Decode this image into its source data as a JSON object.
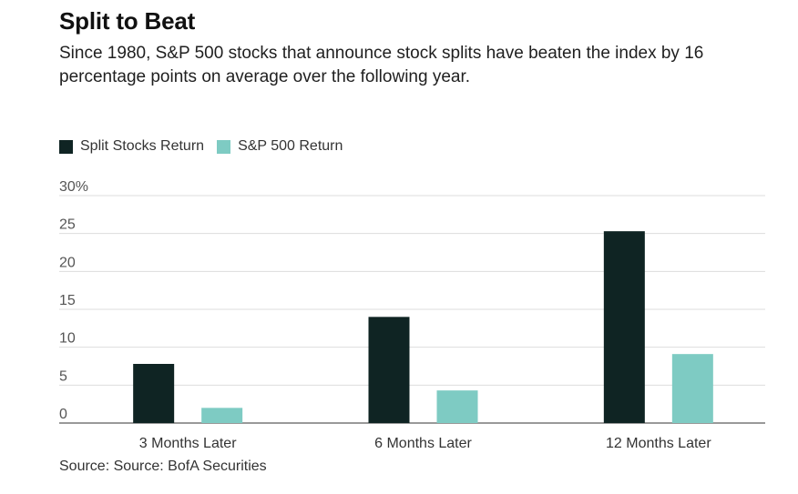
{
  "header": {
    "title": "Split to Beat",
    "subtitle": "Since 1980, S&P 500 stocks that announce stock splits have beaten the index by 16 percentage points on average over the following year."
  },
  "footer": {
    "source": "Source: Source: BofA Securities"
  },
  "colors": {
    "split": "#0f2423",
    "sp500": "#7ecbc3",
    "grid": "#dddddd",
    "axis_text": "#555555"
  },
  "chart_data": {
    "type": "bar",
    "categories": [
      "3 Months Later",
      "6 Months Later",
      "12 Months Later"
    ],
    "series": [
      {
        "name": "Split Stocks Return",
        "values": [
          7.8,
          14.0,
          25.3
        ]
      },
      {
        "name": "S&P 500 Return",
        "values": [
          2.0,
          4.3,
          9.1
        ]
      }
    ],
    "y_ticks": [
      "0",
      "5",
      "10",
      "15",
      "20",
      "25",
      "30%"
    ],
    "ylim": [
      0,
      30
    ],
    "grid": true,
    "legend_position": "top-left"
  }
}
